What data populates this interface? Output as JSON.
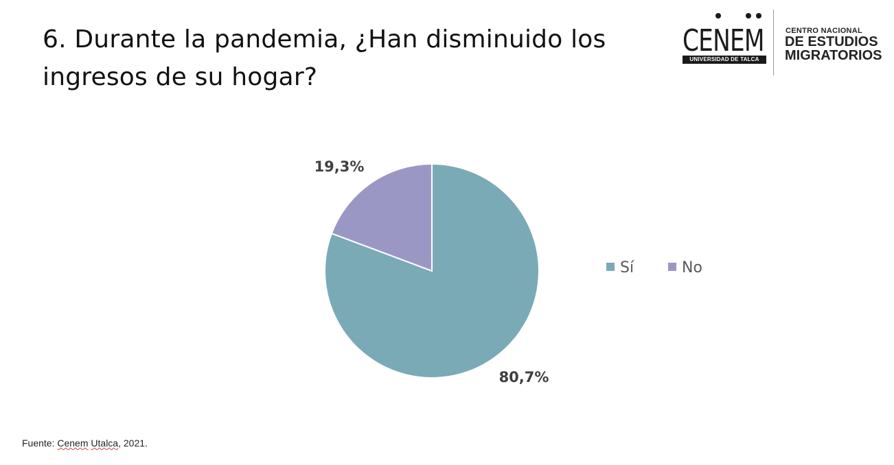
{
  "title": "6. Durante la pandemia, ¿Han disminuido los ingresos de su hogar?",
  "logo": {
    "wordmark": "CENEM",
    "university": "UNIVERSIDAD DE TALCA",
    "line1": "CENTRO NACIONAL",
    "line2": "DE ESTUDIOS",
    "line3": "MIGRATORIOS"
  },
  "chart_data": {
    "type": "pie",
    "categories": [
      "Sí",
      "No"
    ],
    "values": [
      80.7,
      19.3
    ],
    "data_labels": [
      "80,7%",
      "19,3%"
    ],
    "colors": [
      "#7BAAB7",
      "#9B97C5"
    ],
    "legend_position": "right",
    "start_angle": "12 o'clock",
    "direction": "clockwise"
  },
  "source": {
    "prefix": "Fuente: ",
    "org1": "Cenem",
    "org2": "Utalca",
    "suffix": ", 2021."
  }
}
